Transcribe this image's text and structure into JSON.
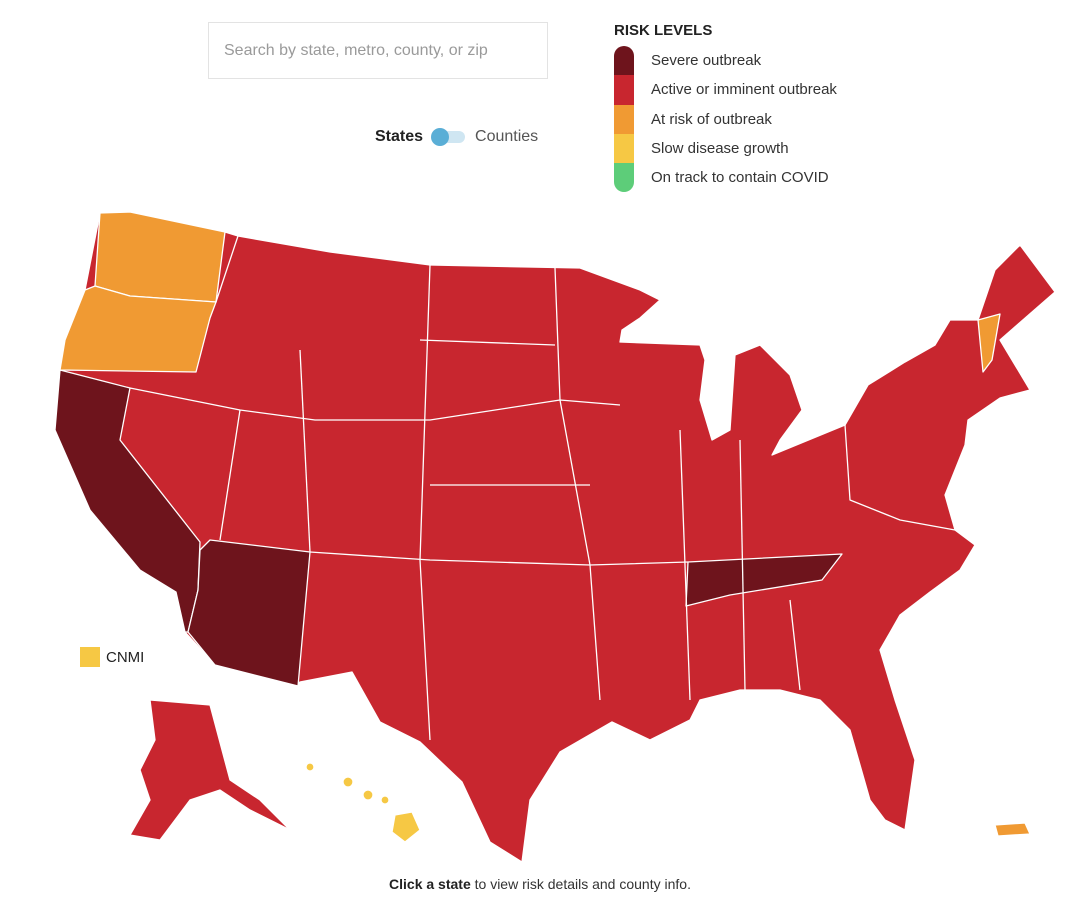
{
  "search": {
    "placeholder": "Search by state, metro, county, or zip"
  },
  "toggle": {
    "left_label": "States",
    "right_label": "Counties",
    "selected": "States"
  },
  "legend": {
    "title": "RISK LEVELS",
    "levels": [
      {
        "label": "Severe outbreak",
        "color": "#6e141c"
      },
      {
        "label": "Active or imminent outbreak",
        "color": "#c8262f"
      },
      {
        "label": "At risk of outbreak",
        "color": "#f09a33"
      },
      {
        "label": "Slow disease growth",
        "color": "#f6c844"
      },
      {
        "label": "On track to contain COVID",
        "color": "#5dcd79"
      }
    ]
  },
  "map": {
    "default_level": "Active or imminent outbreak",
    "highlighted": [
      {
        "state": "California",
        "level": "Severe outbreak"
      },
      {
        "state": "Arizona",
        "level": "Severe outbreak"
      },
      {
        "state": "Tennessee",
        "level": "Severe outbreak"
      },
      {
        "state": "Washington",
        "level": "At risk of outbreak"
      },
      {
        "state": "Oregon",
        "level": "At risk of outbreak"
      },
      {
        "state": "Vermont",
        "level": "At risk of outbreak"
      },
      {
        "state": "Puerto Rico",
        "level": "At risk of outbreak"
      },
      {
        "state": "Hawaii",
        "level": "Slow disease growth"
      }
    ]
  },
  "cnmi": {
    "label": "CNMI",
    "level": "Slow disease growth"
  },
  "footer": {
    "bold": "Click a state",
    "rest": " to view risk details and county info."
  }
}
